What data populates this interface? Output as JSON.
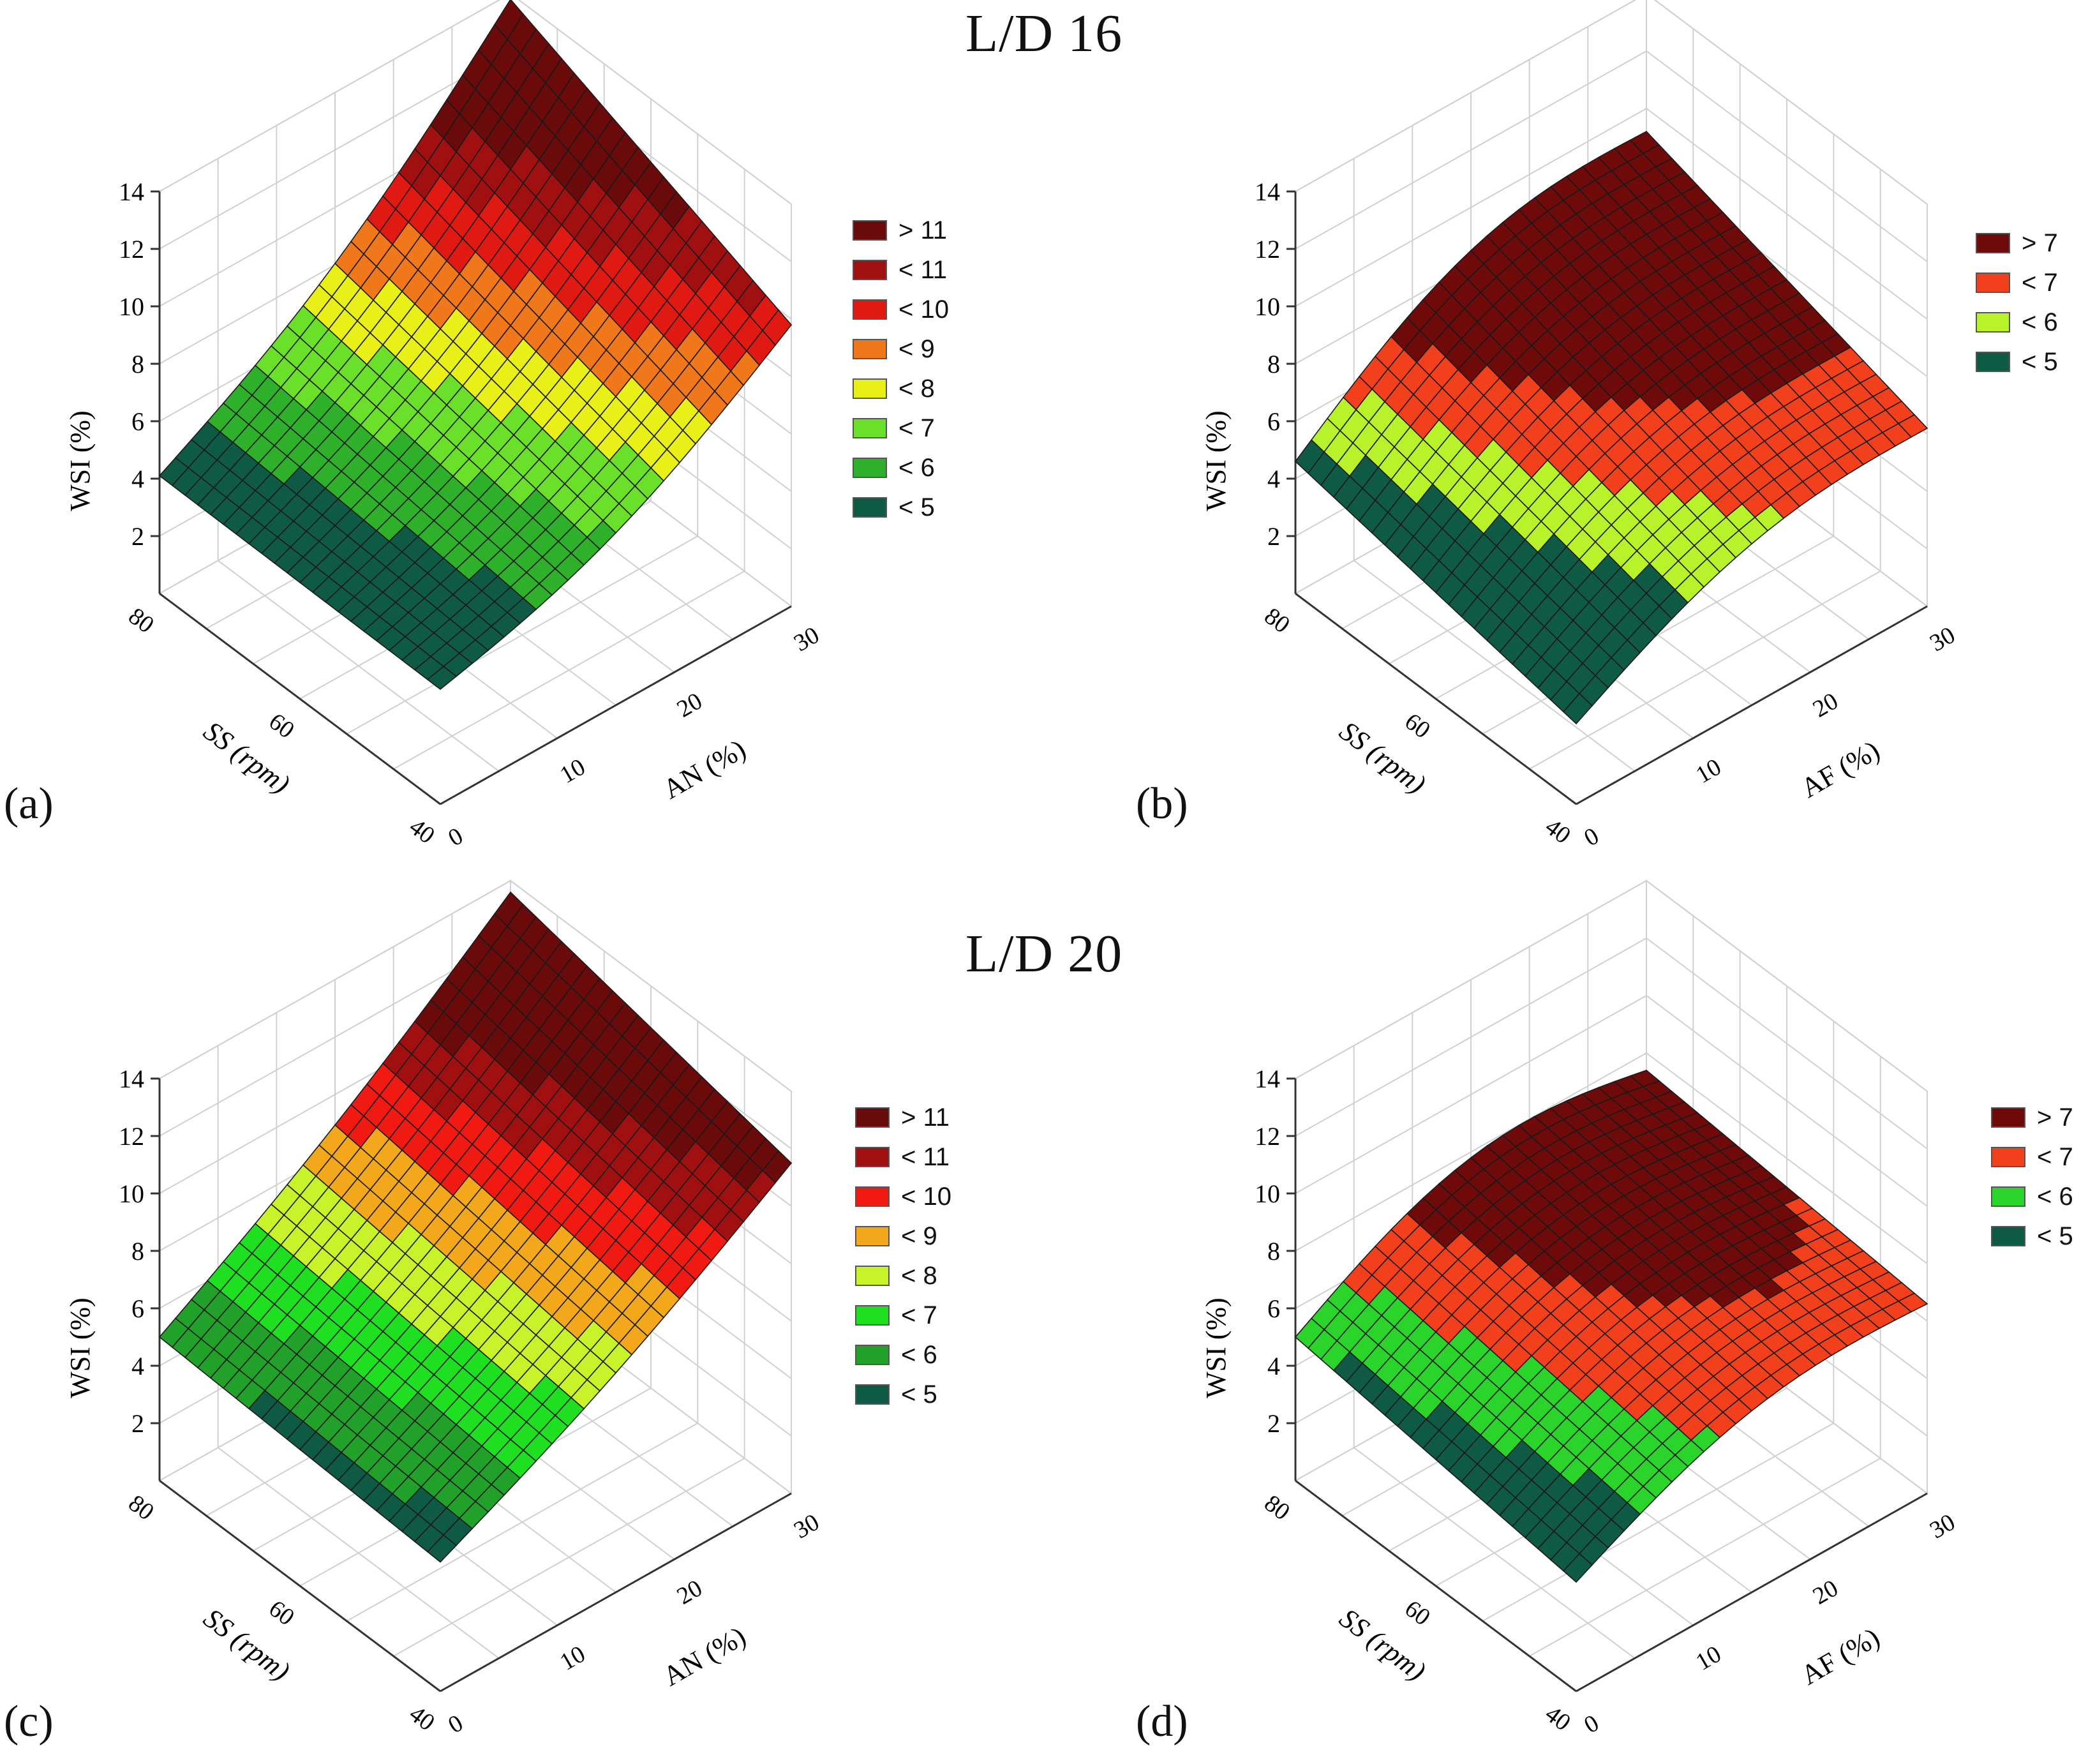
{
  "sections": [
    {
      "title": "L/D 16"
    },
    {
      "title": "L/D 20"
    }
  ],
  "chart_data": [
    {
      "type": "surface3d",
      "panel_label": "(a)",
      "zlabel": "WSI (%)",
      "xlabel": "AN (%)",
      "ylabel": "SS (rpm)",
      "z_ticks": [
        "2",
        "4",
        "6",
        "8",
        "10",
        "12",
        "14"
      ],
      "x_ticks": [
        "0",
        "10",
        "20",
        "30"
      ],
      "y_ticks": [
        "40",
        "60",
        "80"
      ],
      "zlim": [
        0,
        14
      ],
      "xlim": [
        0,
        30
      ],
      "ylim": [
        40,
        80
      ],
      "legend": [
        {
          "label": "> 11",
          "color": "#6b0a0a"
        },
        {
          "label": "< 11",
          "color": "#a11010"
        },
        {
          "label": "< 10",
          "color": "#e01a12"
        },
        {
          "label": "< 9",
          "color": "#f0781a"
        },
        {
          "label": "< 8",
          "color": "#e8f018"
        },
        {
          "label": "< 7",
          "color": "#6ae02a"
        },
        {
          "label": "< 6",
          "color": "#2fb02a"
        },
        {
          "label": "< 5",
          "color": "#0e5a44"
        }
      ],
      "corners": {
        "x0_ymax": 4.1,
        "x0_ymin": 4.0,
        "x30_ymin": 9.8,
        "x30_ymax": 13.8
      },
      "thresholds": [
        5,
        6,
        7,
        8,
        9,
        10,
        11
      ]
    },
    {
      "type": "surface3d",
      "panel_label": "(b)",
      "zlabel": "WSI (%)",
      "xlabel": "AF (%)",
      "ylabel": "SS (rpm)",
      "z_ticks": [
        "2",
        "4",
        "6",
        "8",
        "10",
        "12",
        "14"
      ],
      "x_ticks": [
        "0",
        "10",
        "20",
        "30"
      ],
      "y_ticks": [
        "40",
        "60",
        "80"
      ],
      "zlim": [
        0,
        14
      ],
      "xlim": [
        0,
        30
      ],
      "ylim": [
        40,
        80
      ],
      "legend": [
        {
          "label": "> 7",
          "color": "#6e0a0a"
        },
        {
          "label": "< 7",
          "color": "#f2401c"
        },
        {
          "label": "< 6",
          "color": "#b8f22a"
        },
        {
          "label": "< 5",
          "color": "#0e5a44"
        }
      ],
      "corners": {
        "x0_ymax": 4.6,
        "x0_ymin": 3.2,
        "x30_ymin": 6.6,
        "x30_ymax": 9.2
      },
      "thresholds": [
        5,
        6,
        7
      ]
    },
    {
      "type": "surface3d",
      "panel_label": "(c)",
      "zlabel": "WSI (%)",
      "xlabel": "AN (%)",
      "ylabel": "SS (rpm)",
      "z_ticks": [
        "2",
        "4",
        "6",
        "8",
        "10",
        "12",
        "14"
      ],
      "x_ticks": [
        "0",
        "10",
        "20",
        "30"
      ],
      "y_ticks": [
        "40",
        "60",
        "80"
      ],
      "zlim": [
        0,
        14
      ],
      "xlim": [
        0,
        30
      ],
      "ylim": [
        40,
        80
      ],
      "legend": [
        {
          "label": "> 11",
          "color": "#6b0a0a"
        },
        {
          "label": "< 11",
          "color": "#a11010"
        },
        {
          "label": "< 10",
          "color": "#f01a12"
        },
        {
          "label": "< 9",
          "color": "#f2a81a"
        },
        {
          "label": "< 8",
          "color": "#c8f22a"
        },
        {
          "label": "< 7",
          "color": "#1ee020"
        },
        {
          "label": "< 6",
          "color": "#21a12a"
        },
        {
          "label": "< 5",
          "color": "#0e5a44"
        }
      ],
      "corners": {
        "x0_ymax": 5.0,
        "x0_ymin": 4.5,
        "x30_ymin": 11.5,
        "x30_ymax": 13.6
      },
      "thresholds": [
        5,
        6,
        7,
        8,
        9,
        10,
        11
      ]
    },
    {
      "type": "surface3d",
      "panel_label": "(d)",
      "zlabel": "WSI (%)",
      "xlabel": "AF (%)",
      "ylabel": "SS (rpm)",
      "z_ticks": [
        "2",
        "4",
        "6",
        "8",
        "10",
        "12",
        "14"
      ],
      "x_ticks": [
        "0",
        "10",
        "20",
        "30"
      ],
      "y_ticks": [
        "40",
        "60",
        "80"
      ],
      "zlim": [
        0,
        14
      ],
      "xlim": [
        0,
        30
      ],
      "ylim": [
        40,
        80
      ],
      "legend": [
        {
          "label": "> 7",
          "color": "#6e0a0a"
        },
        {
          "label": "< 7",
          "color": "#f2401c"
        },
        {
          "label": "< 6",
          "color": "#2ad42a"
        },
        {
          "label": "< 5",
          "color": "#0e5a44"
        }
      ],
      "corners": {
        "x0_ymax": 5.0,
        "x0_ymin": 4.2,
        "x30_ymin": 7.0,
        "x30_ymax": 7.4
      },
      "thresholds": [
        5,
        6,
        7
      ]
    }
  ]
}
